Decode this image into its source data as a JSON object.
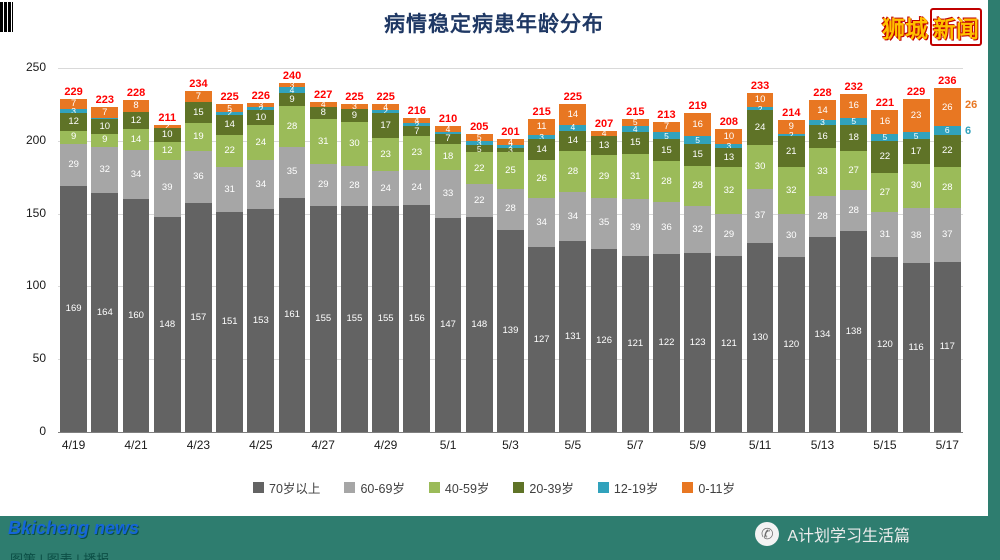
{
  "page": {
    "logo": {
      "part1": "狮城",
      "part2": "新闻"
    },
    "watermark_line1": "Bkicheng news",
    "watermark_line2": "图策 | 图表 | 播报",
    "footer_account": "A计划学习生活篇"
  },
  "chart_data": {
    "type": "bar",
    "stacked": true,
    "title": "病情稳定病患年龄分布",
    "title_color": "#1f3864",
    "xlabel": "",
    "ylabel": "",
    "ylim": [
      0,
      250
    ],
    "yticks": [
      0,
      50,
      100,
      150,
      200,
      250
    ],
    "grid": true,
    "legend_position": "bottom",
    "total_label_color": "#ff0000",
    "x_tick_step": 2,
    "categories": [
      "4/19",
      "4/20",
      "4/21",
      "4/22",
      "4/23",
      "4/24",
      "4/25",
      "4/26",
      "4/27",
      "4/28",
      "4/29",
      "4/30",
      "5/1",
      "5/2",
      "5/3",
      "5/4",
      "5/5",
      "5/6",
      "5/7",
      "5/8",
      "5/9",
      "5/10",
      "5/11",
      "5/12",
      "5/13",
      "5/14",
      "5/15",
      "5/16",
      "5/17"
    ],
    "totals": [
      229,
      223,
      228,
      211,
      234,
      225,
      226,
      240,
      227,
      225,
      225,
      216,
      210,
      205,
      201,
      215,
      225,
      207,
      215,
      213,
      219,
      208,
      233,
      214,
      228,
      232,
      221,
      229,
      236
    ],
    "series": [
      {
        "name": "70岁以上",
        "color": "#636363",
        "values": [
          169,
          164,
          160,
          148,
          157,
          151,
          153,
          161,
          155,
          155,
          155,
          156,
          147,
          148,
          139,
          127,
          131,
          126,
          121,
          122,
          123,
          121,
          130,
          120,
          134,
          138,
          120,
          116,
          117
        ]
      },
      {
        "name": "60-69岁",
        "color": "#a6a6a6",
        "values": [
          29,
          32,
          34,
          39,
          36,
          31,
          34,
          35,
          29,
          28,
          24,
          24,
          33,
          22,
          28,
          34,
          34,
          35,
          39,
          36,
          32,
          29,
          37,
          30,
          28,
          28,
          31,
          38,
          37
        ]
      },
      {
        "name": "40-59岁",
        "color": "#9bbb59",
        "values": [
          9,
          9,
          14,
          12,
          19,
          22,
          24,
          28,
          31,
          30,
          23,
          23,
          18,
          22,
          25,
          26,
          28,
          29,
          31,
          28,
          28,
          32,
          30,
          32,
          33,
          27,
          27,
          30,
          28
        ]
      },
      {
        "name": "20-39岁",
        "color": "#5f7327",
        "values": [
          12,
          10,
          12,
          10,
          15,
          14,
          10,
          9,
          8,
          9,
          17,
          7,
          7,
          5,
          3,
          14,
          14,
          13,
          15,
          15,
          15,
          13,
          24,
          21,
          16,
          18,
          22,
          17,
          22
        ]
      },
      {
        "name": "12-19岁",
        "color": "#31a2bc",
        "values": [
          3,
          1,
          0,
          0,
          0,
          2,
          2,
          4,
          0,
          0,
          2,
          2,
          1,
          3,
          2,
          3,
          4,
          0,
          4,
          5,
          5,
          3,
          2,
          2,
          3,
          5,
          5,
          5,
          6
        ]
      },
      {
        "name": "0-11岁",
        "color": "#e87722",
        "values": [
          7,
          7,
          8,
          2,
          7,
          5,
          3,
          3,
          4,
          3,
          4,
          4,
          4,
          5,
          4,
          11,
          14,
          4,
          5,
          7,
          16,
          10,
          10,
          9,
          14,
          16,
          16,
          23,
          26
        ]
      }
    ],
    "last_bar_outside_labels": {
      "orange": 26,
      "teal": 6
    }
  }
}
